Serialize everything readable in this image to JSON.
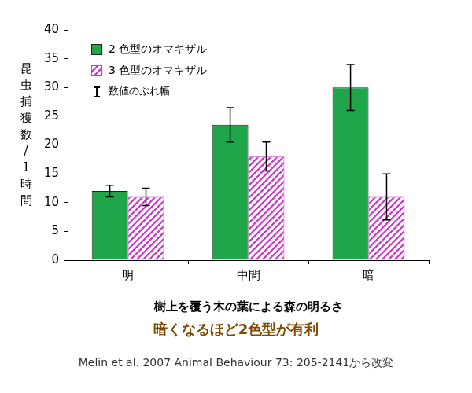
{
  "chart_data": {
    "type": "bar",
    "categories": [
      "明",
      "中間",
      "暗"
    ],
    "series": [
      {
        "name": "2 色型のオマキザル",
        "color": "#1fa64a",
        "values": [
          12,
          23.5,
          30
        ],
        "errors": [
          1,
          3,
          4
        ]
      },
      {
        "name": "3 色型のオマキザル",
        "color": "#cc33cc",
        "values": [
          11,
          18,
          11
        ],
        "errors": [
          1.5,
          2.5,
          4
        ]
      }
    ],
    "x_label": "樹上を覆う木の葉による森の明るさ",
    "y_label": "昆虫捕獲数/1時間",
    "subtitle": "暗くなるほど2色型が有利",
    "source": "Melin et al. 2007 Animal Behaviour 73: 205-2141から改変",
    "error_bar_label": "数値のぶれ幅",
    "ylim": [
      0,
      40
    ],
    "yticks": [
      0,
      5,
      10,
      15,
      20,
      25,
      30,
      35,
      40
    ],
    "grid": false,
    "legend": "top-left"
  }
}
